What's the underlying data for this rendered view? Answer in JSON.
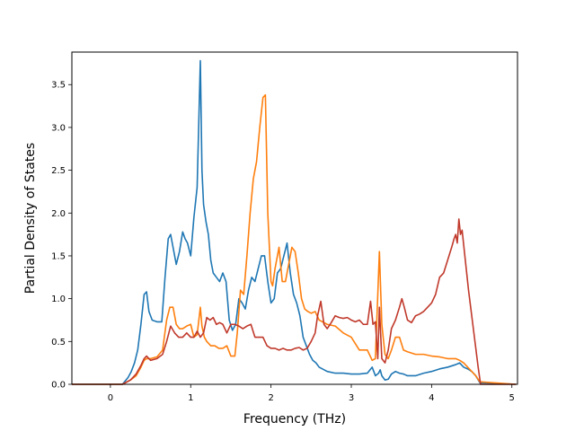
{
  "chart_data": {
    "type": "line",
    "title": "",
    "xlabel": "Frequency (THz)",
    "ylabel": "Partial Density of States",
    "xlim": [
      -0.48,
      5.07
    ],
    "ylim": [
      0,
      3.88
    ],
    "xticks": [
      0,
      1,
      2,
      3,
      4,
      5
    ],
    "xtick_labels": [
      "0",
      "1",
      "2",
      "3",
      "4",
      "5"
    ],
    "yticks": [
      0.0,
      0.5,
      1.0,
      1.5,
      2.0,
      2.5,
      3.0,
      3.5
    ],
    "ytick_labels": [
      "0.0",
      "0.5",
      "1.0",
      "1.5",
      "2.0",
      "2.5",
      "3.0",
      "3.5"
    ],
    "grid": false,
    "legend": "none",
    "series": [
      {
        "color": "#1f77b4",
        "x": [
          -0.48,
          0.15,
          0.22,
          0.26,
          0.3,
          0.34,
          0.38,
          0.42,
          0.45,
          0.48,
          0.52,
          0.58,
          0.64,
          0.68,
          0.72,
          0.75,
          0.78,
          0.82,
          0.86,
          0.9,
          0.93,
          0.96,
          1.0,
          1.04,
          1.08,
          1.12,
          1.14,
          1.16,
          1.19,
          1.22,
          1.25,
          1.28,
          1.32,
          1.36,
          1.4,
          1.44,
          1.48,
          1.52,
          1.56,
          1.6,
          1.64,
          1.68,
          1.72,
          1.76,
          1.8,
          1.84,
          1.88,
          1.92,
          1.96,
          2.0,
          2.04,
          2.08,
          2.12,
          2.16,
          2.2,
          2.24,
          2.28,
          2.32,
          2.36,
          2.4,
          2.44,
          2.48,
          2.52,
          2.56,
          2.6,
          2.7,
          2.8,
          2.9,
          3.0,
          3.1,
          3.2,
          3.26,
          3.3,
          3.34,
          3.36,
          3.38,
          3.42,
          3.46,
          3.5,
          3.55,
          3.6,
          3.65,
          3.7,
          3.8,
          3.9,
          4.0,
          4.1,
          4.2,
          4.3,
          4.35,
          4.4,
          4.45,
          4.5,
          4.55,
          4.6,
          5.05
        ],
        "y": [
          0.0,
          0.0,
          0.08,
          0.15,
          0.25,
          0.4,
          0.7,
          1.05,
          1.08,
          0.85,
          0.75,
          0.73,
          0.73,
          1.25,
          1.7,
          1.75,
          1.6,
          1.4,
          1.55,
          1.78,
          1.7,
          1.65,
          1.5,
          1.95,
          2.3,
          3.78,
          2.5,
          2.1,
          1.9,
          1.75,
          1.45,
          1.3,
          1.25,
          1.2,
          1.3,
          1.2,
          0.75,
          0.63,
          0.7,
          1.0,
          0.95,
          0.88,
          1.1,
          1.25,
          1.2,
          1.35,
          1.5,
          1.5,
          1.2,
          0.95,
          1.0,
          1.3,
          1.35,
          1.5,
          1.65,
          1.3,
          1.05,
          0.95,
          0.8,
          0.55,
          0.45,
          0.35,
          0.28,
          0.25,
          0.2,
          0.15,
          0.13,
          0.13,
          0.12,
          0.12,
          0.13,
          0.2,
          0.1,
          0.13,
          0.17,
          0.1,
          0.05,
          0.06,
          0.12,
          0.15,
          0.13,
          0.12,
          0.1,
          0.1,
          0.13,
          0.15,
          0.18,
          0.2,
          0.23,
          0.25,
          0.2,
          0.18,
          0.15,
          0.1,
          0.02,
          0.0
        ]
      },
      {
        "color": "#ff7f0e",
        "x": [
          -0.48,
          0.15,
          0.25,
          0.32,
          0.38,
          0.42,
          0.45,
          0.5,
          0.58,
          0.65,
          0.7,
          0.74,
          0.78,
          0.82,
          0.86,
          0.9,
          0.95,
          1.0,
          1.04,
          1.08,
          1.12,
          1.14,
          1.17,
          1.2,
          1.25,
          1.3,
          1.35,
          1.4,
          1.45,
          1.5,
          1.55,
          1.58,
          1.62,
          1.66,
          1.7,
          1.74,
          1.78,
          1.82,
          1.86,
          1.9,
          1.93,
          1.96,
          2.0,
          2.02,
          2.05,
          2.08,
          2.1,
          2.14,
          2.18,
          2.22,
          2.26,
          2.3,
          2.34,
          2.38,
          2.42,
          2.46,
          2.5,
          2.55,
          2.6,
          2.7,
          2.8,
          2.9,
          3.0,
          3.1,
          3.2,
          3.26,
          3.3,
          3.33,
          3.35,
          3.38,
          3.42,
          3.46,
          3.5,
          3.55,
          3.6,
          3.65,
          3.7,
          3.8,
          3.9,
          4.0,
          4.1,
          4.2,
          4.3,
          4.35,
          4.4,
          4.45,
          4.5,
          4.55,
          4.6,
          5.05
        ],
        "y": [
          0.0,
          0.0,
          0.05,
          0.1,
          0.2,
          0.28,
          0.3,
          0.3,
          0.32,
          0.4,
          0.75,
          0.9,
          0.9,
          0.7,
          0.65,
          0.65,
          0.68,
          0.7,
          0.55,
          0.58,
          0.9,
          0.68,
          0.55,
          0.5,
          0.45,
          0.45,
          0.42,
          0.42,
          0.45,
          0.33,
          0.33,
          0.6,
          1.1,
          1.05,
          1.5,
          2.0,
          2.4,
          2.6,
          3.0,
          3.35,
          3.38,
          2.0,
          1.2,
          1.15,
          1.35,
          1.5,
          1.6,
          1.2,
          1.2,
          1.4,
          1.6,
          1.55,
          1.3,
          1.0,
          0.88,
          0.85,
          0.83,
          0.85,
          0.75,
          0.7,
          0.68,
          0.6,
          0.55,
          0.4,
          0.4,
          0.28,
          0.3,
          1.05,
          1.55,
          0.7,
          0.35,
          0.3,
          0.4,
          0.55,
          0.55,
          0.4,
          0.38,
          0.35,
          0.35,
          0.33,
          0.32,
          0.3,
          0.3,
          0.28,
          0.25,
          0.2,
          0.15,
          0.1,
          0.03,
          0.0
        ]
      },
      {
        "color": "#c0392b",
        "x": [
          -0.48,
          0.15,
          0.25,
          0.32,
          0.38,
          0.42,
          0.45,
          0.5,
          0.58,
          0.65,
          0.7,
          0.75,
          0.8,
          0.85,
          0.9,
          0.95,
          1.0,
          1.04,
          1.08,
          1.12,
          1.16,
          1.2,
          1.24,
          1.28,
          1.32,
          1.36,
          1.4,
          1.45,
          1.5,
          1.55,
          1.6,
          1.65,
          1.7,
          1.75,
          1.8,
          1.85,
          1.9,
          1.95,
          2.0,
          2.05,
          2.1,
          2.15,
          2.2,
          2.25,
          2.3,
          2.35,
          2.4,
          2.45,
          2.5,
          2.55,
          2.58,
          2.62,
          2.66,
          2.7,
          2.75,
          2.8,
          2.85,
          2.9,
          2.95,
          3.0,
          3.05,
          3.1,
          3.15,
          3.2,
          3.24,
          3.27,
          3.3,
          3.33,
          3.35,
          3.38,
          3.42,
          3.46,
          3.5,
          3.55,
          3.6,
          3.63,
          3.66,
          3.7,
          3.75,
          3.8,
          3.85,
          3.9,
          3.95,
          4.0,
          4.05,
          4.1,
          4.15,
          4.2,
          4.25,
          4.28,
          4.3,
          4.32,
          4.34,
          4.36,
          4.38,
          4.42,
          4.46,
          4.5,
          4.54,
          4.58,
          4.61,
          5.05
        ],
        "y": [
          0.0,
          0.0,
          0.05,
          0.12,
          0.22,
          0.3,
          0.33,
          0.28,
          0.3,
          0.35,
          0.5,
          0.68,
          0.6,
          0.55,
          0.55,
          0.6,
          0.55,
          0.55,
          0.62,
          0.55,
          0.6,
          0.78,
          0.75,
          0.78,
          0.7,
          0.72,
          0.7,
          0.6,
          0.7,
          0.7,
          0.68,
          0.65,
          0.68,
          0.7,
          0.55,
          0.55,
          0.55,
          0.45,
          0.42,
          0.42,
          0.4,
          0.42,
          0.4,
          0.4,
          0.42,
          0.43,
          0.4,
          0.42,
          0.5,
          0.6,
          0.8,
          0.97,
          0.7,
          0.65,
          0.72,
          0.8,
          0.78,
          0.77,
          0.78,
          0.75,
          0.73,
          0.75,
          0.7,
          0.7,
          0.97,
          0.7,
          0.73,
          0.3,
          0.9,
          0.3,
          0.25,
          0.4,
          0.65,
          0.75,
          0.9,
          1.0,
          0.9,
          0.75,
          0.72,
          0.8,
          0.82,
          0.85,
          0.9,
          0.95,
          1.05,
          1.25,
          1.3,
          1.45,
          1.6,
          1.7,
          1.75,
          1.65,
          1.93,
          1.75,
          1.8,
          1.45,
          1.1,
          0.8,
          0.5,
          0.2,
          0.0,
          0.0
        ]
      }
    ]
  }
}
